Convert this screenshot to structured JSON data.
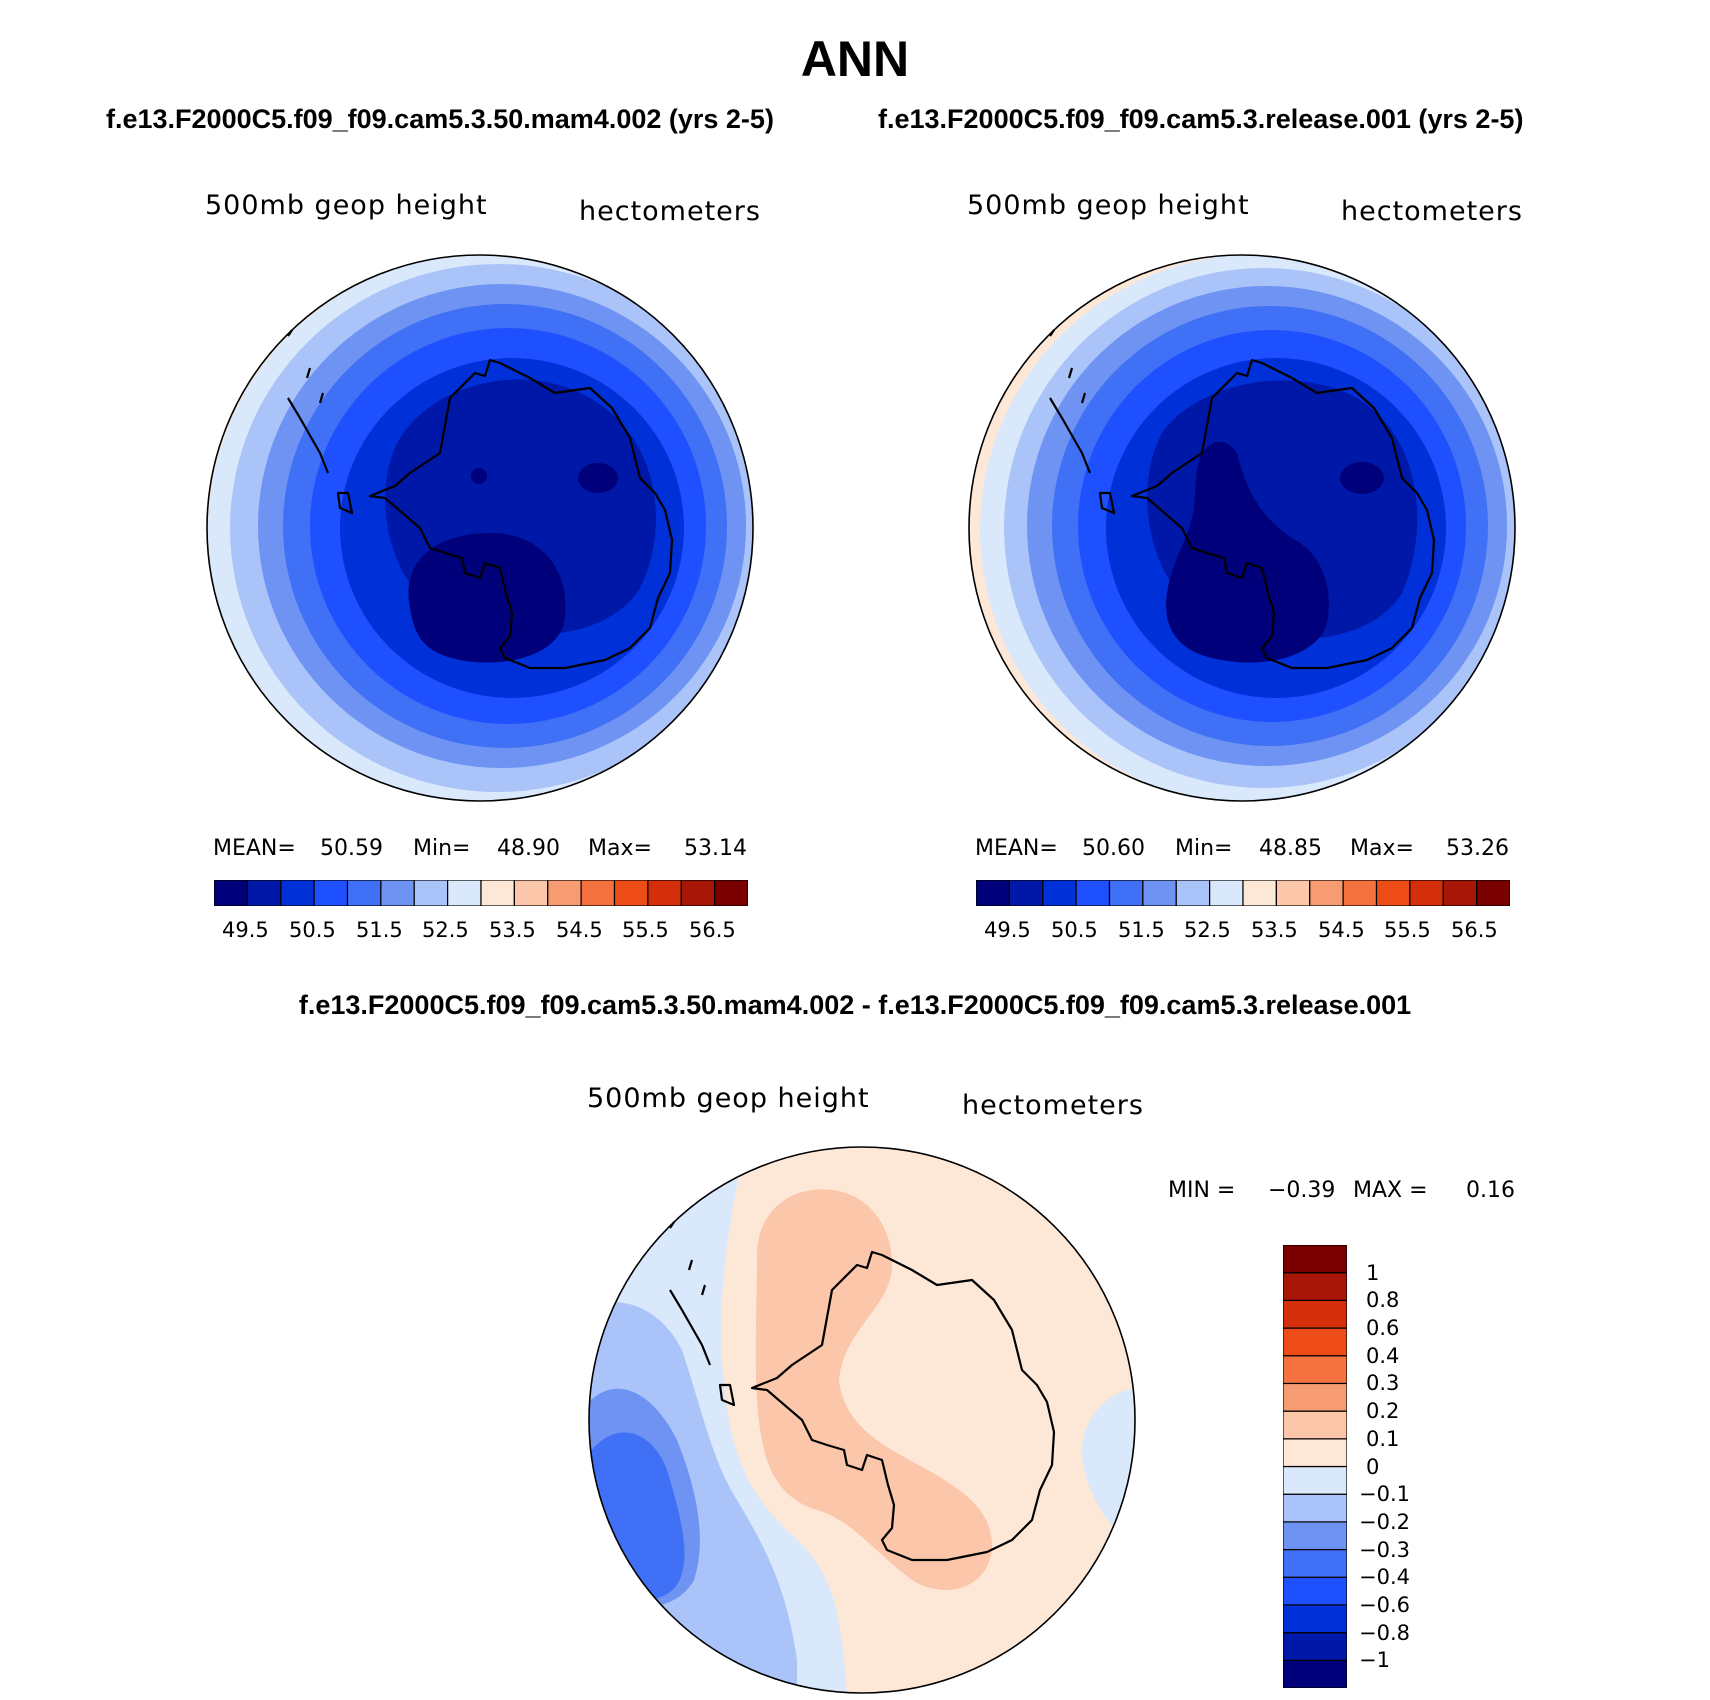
{
  "title": "ANN",
  "case1_label": "f.e13.F2000C5.f09_f09.cam5.3.50.mam4.002 (yrs 2-5)",
  "case2_label": "f.e13.F2000C5.f09_f09.cam5.3.release.001 (yrs 2-5)",
  "diff_label": "f.e13.F2000C5.f09_f09.cam5.3.50.mam4.002 - f.e13.F2000C5.f09_f09.cam5.3.release.001",
  "panels": [
    {
      "variable": "500mb geop height",
      "units": "hectometers",
      "stats": {
        "mean_label": "MEAN=",
        "mean": "50.59",
        "min_label": "Min=",
        "min": "48.90",
        "max_label": "Max=",
        "max": "53.14"
      }
    },
    {
      "variable": "500mb geop height",
      "units": "hectometers",
      "stats": {
        "mean_label": "MEAN=",
        "mean": "50.60",
        "min_label": "Min=",
        "min": "48.85",
        "max_label": "Max=",
        "max": "53.26"
      }
    }
  ],
  "diff_panel": {
    "variable": "500mb geop height",
    "units": "hectometers",
    "stats": {
      "min_label": "MIN =",
      "min": "−0.39",
      "max_label": "MAX =",
      "max": "0.16"
    }
  },
  "abs_colorbar": {
    "colors": [
      "#00007a",
      "#0018a8",
      "#0030d8",
      "#1e50ff",
      "#3f70f5",
      "#6e93f2",
      "#aac4fa",
      "#d9e8fb",
      "#fde8d8",
      "#fbc6aa",
      "#f79c72",
      "#f57240",
      "#ee4c17",
      "#d42f0a",
      "#a81608",
      "#7a0000"
    ],
    "ticks": [
      "49.5",
      "50.5",
      "51.5",
      "52.5",
      "53.5",
      "54.5",
      "55.5",
      "56.5"
    ]
  },
  "diff_colorbar": {
    "colors": [
      "#00007a",
      "#0018a8",
      "#0030d8",
      "#1e50ff",
      "#3f70f5",
      "#6e93f2",
      "#aac4fa",
      "#d9e8fb",
      "#fde8d8",
      "#fbc6aa",
      "#f79c72",
      "#f57240",
      "#ee4c17",
      "#d42f0a",
      "#a81608",
      "#7a0000"
    ],
    "ticks": [
      "−1",
      "−0.8",
      "−0.6",
      "−0.4",
      "−0.3",
      "−0.2",
      "−0.1",
      "0",
      "0.1",
      "0.2",
      "0.3",
      "0.4",
      "0.6",
      "0.8",
      "1"
    ]
  }
}
